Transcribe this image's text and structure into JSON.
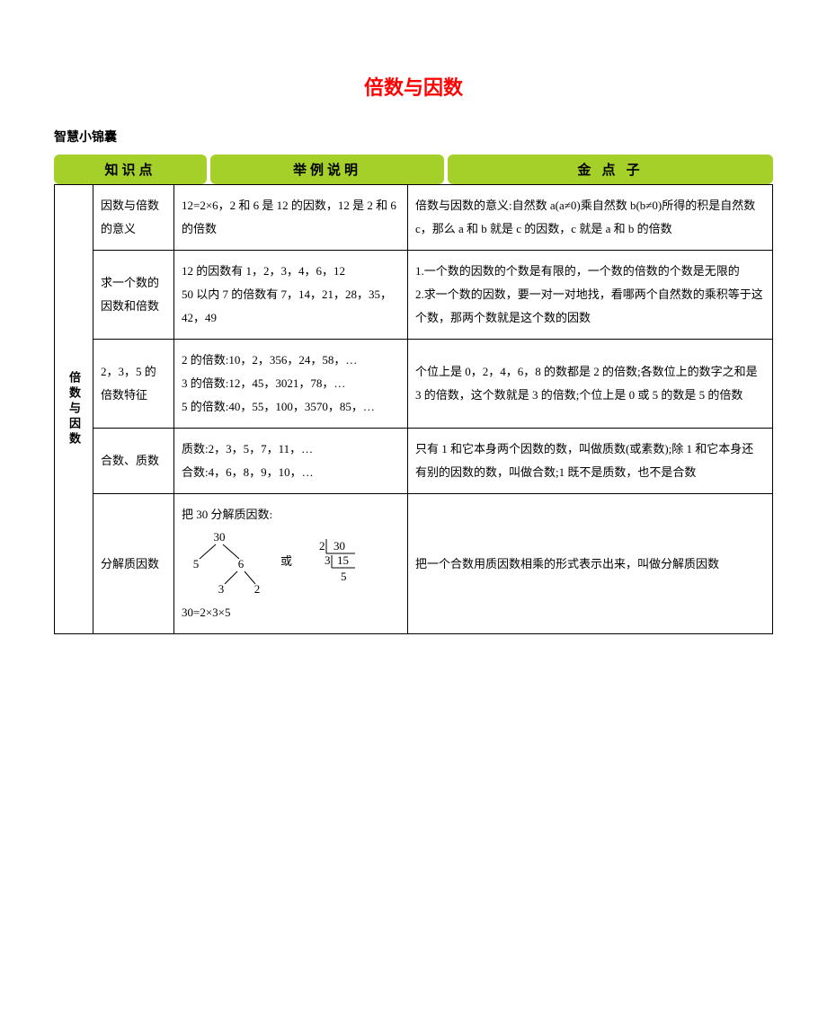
{
  "title": "倍数与因数",
  "subtitle": "智慧小锦囊",
  "headers": {
    "h1": "知识点",
    "h2": "举例说明",
    "h3": "金 点 子"
  },
  "sidebar": "倍数与因数",
  "rows": [
    {
      "sub": "因数与倍数的意义",
      "ex": "12=2×6，2 和 6 是 12 的因数，12 是 2 和 6 的倍数",
      "tip": "倍数与因数的意义:自然数 a(a≠0)乘自然数 b(b≠0)所得的积是自然数 c，那么 a 和 b 就是 c 的因数，c 就是 a 和 b 的倍数"
    },
    {
      "sub": "求一个数的因数和倍数",
      "ex": "12 的因数有 1，2，3，4，6，12\n50 以内 7 的倍数有 7，14，21，28，35，42，49",
      "tip": "1.一个数的因数的个数是有限的，一个数的倍数的个数是无限的\n2.求一个数的因数，要一对一对地找，看哪两个自然数的乘积等于这个数，那两个数就是这个数的因数"
    },
    {
      "sub": "2，3，5 的倍数特征",
      "ex": "2 的倍数:10，2，356，24，58，…\n3 的倍数:12，45，3021，78，…\n5 的倍数:40，55，100，3570，85，…",
      "tip": "个位上是 0，2，4，6，8 的数都是 2 的倍数;各数位上的数字之和是 3 的倍数，这个数就是 3 的倍数;个位上是 0 或 5 的数是 5 的倍数"
    },
    {
      "sub": "合数、质数",
      "ex": "质数:2，3，5，7，11，…\n合数:4，6，8，9，10，…",
      "tip": "只有 1 和它本身两个因数的数，叫做质数(或素数);除 1 和它本身还有别的因数的数，叫做合数;1 既不是质数，也不是合数"
    },
    {
      "sub": "分解质因数",
      "ex_pre": "把 30 分解质因数:",
      "ex_post": "30=2×3×5",
      "tip": "把一个合数用质因数相乘的形式表示出来，叫做分解质因数",
      "or": "或",
      "tree": {
        "top": "30",
        "l1a": "5",
        "l1b": "6",
        "l2a": "3",
        "l2b": "2"
      },
      "div": {
        "a": "2",
        "b": "30",
        "c": "3",
        "d": "15",
        "e": "5"
      }
    }
  ],
  "colors": {
    "header_bg": "#a4d029",
    "title": "#ff0000",
    "border": "#000000"
  }
}
